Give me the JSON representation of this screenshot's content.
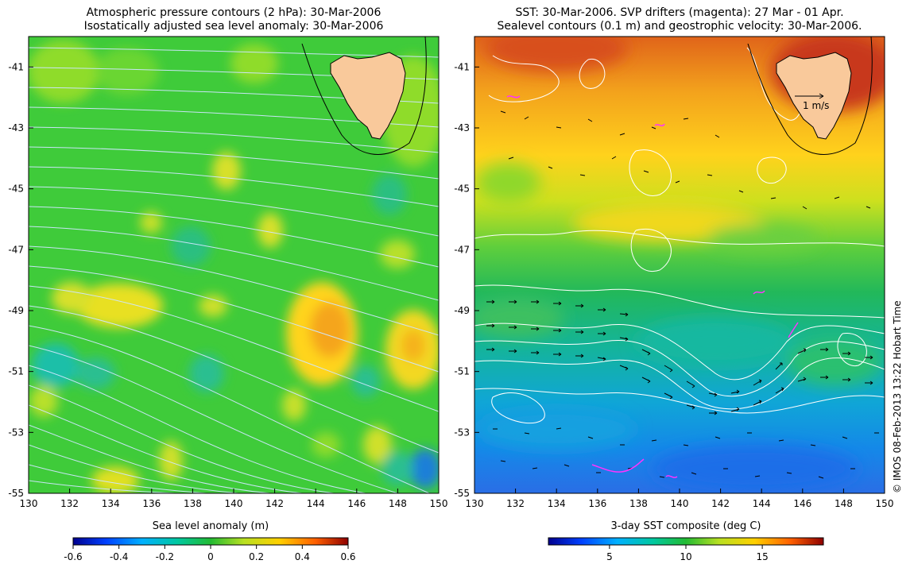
{
  "left_panel": {
    "title_line1": "Atmospheric pressure contours (2 hPa): 30-Mar-2006",
    "title_line2": "Isostatically adjusted sea level anomaly: 30-Mar-2006",
    "lat_ticks": [
      "-41",
      "-43",
      "-45",
      "-47",
      "-49",
      "-51",
      "-53",
      "-55"
    ],
    "lon_ticks": [
      "130",
      "132",
      "134",
      "136",
      "138",
      "140",
      "142",
      "144",
      "146",
      "148",
      "150"
    ],
    "lat_values": [
      -41,
      -43,
      -45,
      -47,
      -49,
      -51,
      -53,
      -55
    ],
    "lon_values": [
      130,
      132,
      134,
      136,
      138,
      140,
      142,
      144,
      146,
      148,
      150
    ],
    "colorbar": {
      "label": "Sea level anomaly (m)",
      "ticks": [
        "-0.6",
        "-0.4",
        "-0.2",
        "0",
        "0.2",
        "0.4",
        "0.6"
      ],
      "range": [
        -0.6,
        0.6
      ]
    }
  },
  "right_panel": {
    "title_line1": "SST: 30-Mar-2006. SVP drifters (magenta): 27 Mar - 01 Apr.",
    "title_line2": "Sealevel contours (0.1 m) and geostrophic velocity: 30-Mar-2006.",
    "lat_ticks": [
      "-41",
      "-43",
      "-45",
      "-47",
      "-49",
      "-51",
      "-53",
      "-55"
    ],
    "lon_ticks": [
      "130",
      "132",
      "134",
      "136",
      "138",
      "140",
      "142",
      "144",
      "146",
      "148",
      "150"
    ],
    "lat_values": [
      -41,
      -43,
      -45,
      -47,
      -49,
      -51,
      -53,
      -55
    ],
    "lon_values": [
      130,
      132,
      134,
      136,
      138,
      140,
      142,
      144,
      146,
      148,
      150
    ],
    "scale_arrow_label": "1 m/s",
    "colorbar": {
      "label": "3-day SST composite (deg C)",
      "ticks": [
        "5",
        "10",
        "15"
      ],
      "tick_values": [
        5,
        10,
        15
      ],
      "range": [
        1,
        19
      ]
    }
  },
  "map_extent": {
    "lon": [
      130,
      150
    ],
    "lat": [
      -55,
      -40
    ]
  },
  "credit": "© IMOS 08-Feb-2013 13:22 Hobart Time",
  "colors": {
    "land": "#f9c99b",
    "coastline": "#000000",
    "pressure_contours": "#cfe6ff",
    "sealevel_contours": "#ffffff",
    "drifters": "#ff33ff",
    "velocity_arrows": "#000000"
  }
}
